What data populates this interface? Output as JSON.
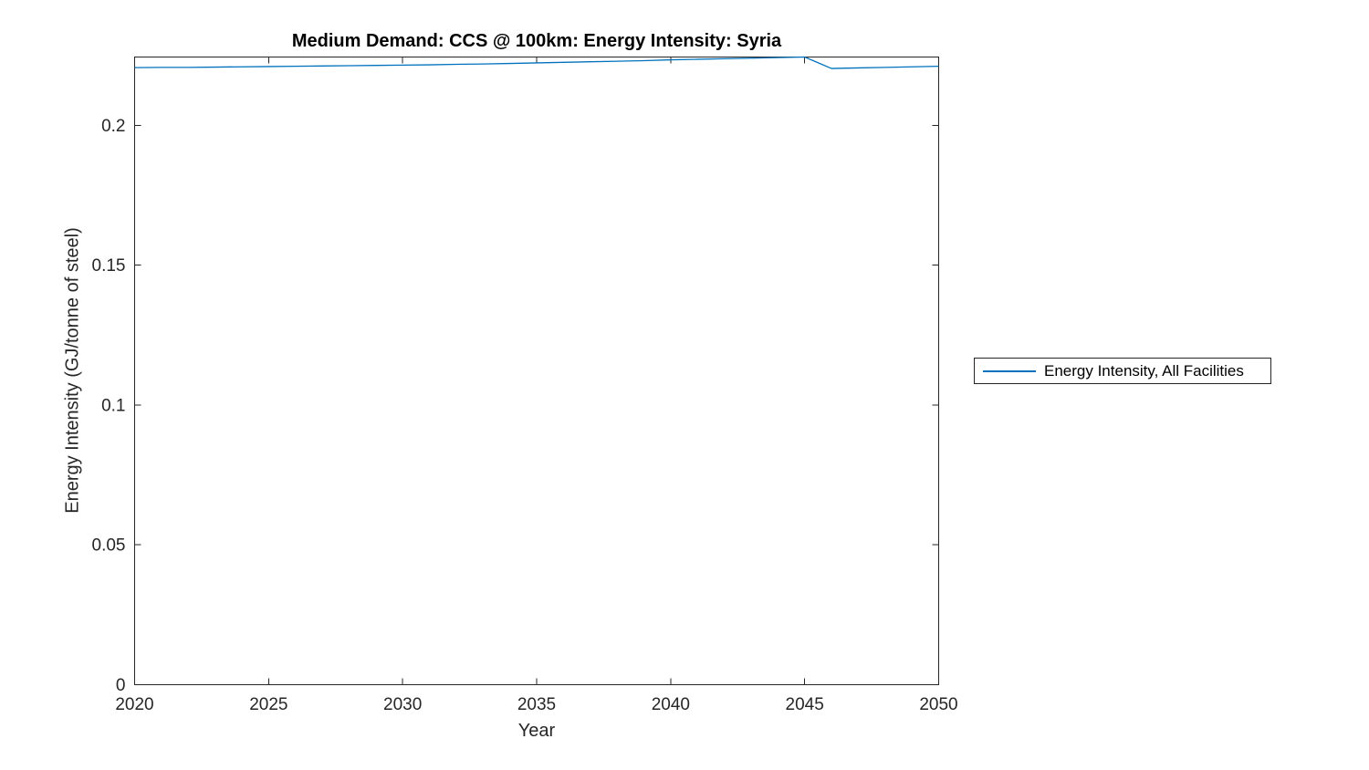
{
  "figure": {
    "background": "#ffffff"
  },
  "chart_data": {
    "type": "line",
    "title": "Medium Demand: CCS @ 100km: Energy Intensity: Syria",
    "xlabel": "Year",
    "ylabel": "Energy Intensity (GJ/tonne of steel)",
    "x": [
      2020,
      2021,
      2022,
      2023,
      2024,
      2025,
      2026,
      2027,
      2028,
      2029,
      2030,
      2031,
      2032,
      2033,
      2034,
      2035,
      2036,
      2037,
      2038,
      2039,
      2040,
      2041,
      2042,
      2043,
      2044,
      2045,
      2046,
      2047,
      2048,
      2049,
      2050
    ],
    "series": [
      {
        "name": "Energy Intensity, All Facilities",
        "color": "#0072BD",
        "values": [
          0.2206,
          0.2207,
          0.2207,
          0.2208,
          0.2209,
          0.221,
          0.2211,
          0.2212,
          0.2213,
          0.2214,
          0.2215,
          0.2216,
          0.2218,
          0.2219,
          0.2221,
          0.2223,
          0.2225,
          0.2227,
          0.2229,
          0.2231,
          0.2234,
          0.2236,
          0.2238,
          0.224,
          0.2242,
          0.2244,
          0.2203,
          0.2205,
          0.2207,
          0.2209,
          0.2211
        ]
      }
    ],
    "xlim": [
      2020,
      2050
    ],
    "ylim": [
      0,
      0.2244
    ],
    "xticks": {
      "values": [
        2020,
        2025,
        2030,
        2035,
        2040,
        2045,
        2050
      ],
      "labels": [
        "2020",
        "2025",
        "2030",
        "2035",
        "2040",
        "2045",
        "2050"
      ]
    },
    "yticks": {
      "values": [
        0,
        0.05,
        0.1,
        0.15,
        0.2
      ],
      "labels": [
        "0",
        "0.05",
        "0.1",
        "0.15",
        "0.2"
      ]
    },
    "grid": false,
    "box": true,
    "tick_direction": "in",
    "axis_color": "#262626",
    "legend": {
      "position": "outside-right",
      "entries": [
        "Energy Intensity, All Facilities"
      ]
    }
  }
}
